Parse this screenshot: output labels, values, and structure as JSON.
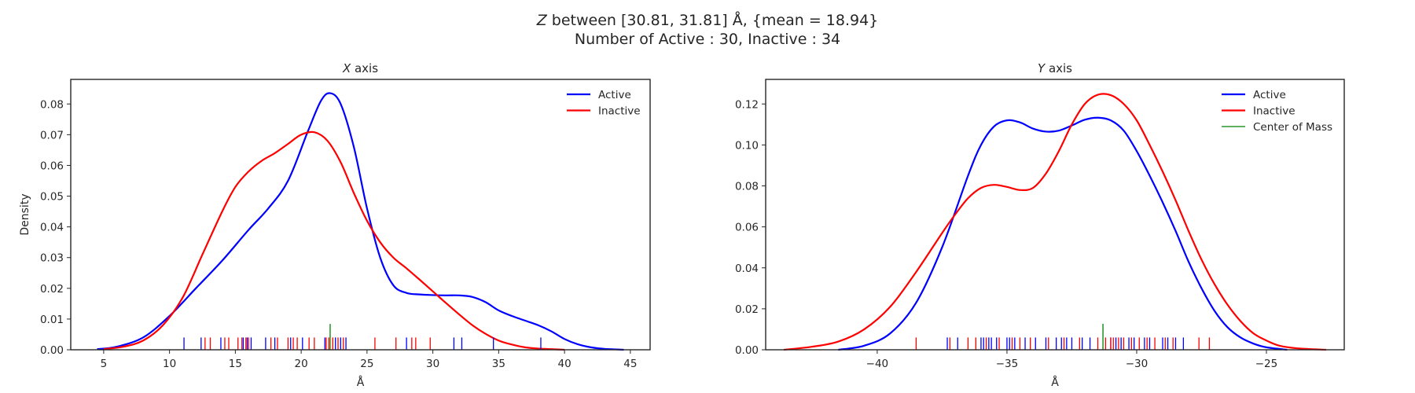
{
  "figure": {
    "title_line1_var": "Z",
    "title_line1_rest": " between [30.81, 31.81] Å, {mean = 18.94}",
    "title_line2": "Number of Active : 30, Inactive : 34"
  },
  "colors": {
    "active": "#0000ff",
    "inactive": "#ff0000",
    "com": "#008000"
  },
  "chart_data": [
    {
      "type": "line",
      "subtitle_var": "X",
      "subtitle_rest": " axis",
      "xlabel": "Å",
      "ylabel": "Density",
      "xlim": [
        2.5,
        46.5
      ],
      "ylim": [
        0,
        0.088
      ],
      "xticks": [
        5,
        10,
        15,
        20,
        25,
        30,
        35,
        40,
        45
      ],
      "xtick_labels": [
        "5",
        "10",
        "15",
        "20",
        "25",
        "30",
        "35",
        "40",
        "45"
      ],
      "yticks": [
        0,
        0.01,
        0.02,
        0.03,
        0.04,
        0.05,
        0.06,
        0.07,
        0.08
      ],
      "ytick_labels": [
        "0.00",
        "0.01",
        "0.02",
        "0.03",
        "0.04",
        "0.05",
        "0.06",
        "0.07",
        "0.08"
      ],
      "grid": false,
      "legend_position": "top-right",
      "rug_height": 0.004,
      "series": [
        {
          "name": "Active",
          "color_key": "active",
          "x": [
            4.5,
            6,
            8,
            10,
            12,
            14,
            16,
            17.5,
            19,
            20.5,
            21.5,
            22.2,
            23,
            24,
            25,
            26,
            27,
            28,
            29,
            30,
            31,
            32,
            33,
            34,
            35,
            36,
            37,
            38,
            39,
            40,
            41,
            42,
            43,
            44.5
          ],
          "y": [
            0.0002,
            0.001,
            0.004,
            0.011,
            0.02,
            0.029,
            0.039,
            0.046,
            0.055,
            0.071,
            0.081,
            0.0835,
            0.08,
            0.066,
            0.046,
            0.03,
            0.021,
            0.0185,
            0.018,
            0.0178,
            0.0177,
            0.0177,
            0.0172,
            0.0155,
            0.0128,
            0.011,
            0.0095,
            0.008,
            0.006,
            0.0035,
            0.0018,
            0.0008,
            0.0003,
            0.0
          ],
          "rug": [
            11.1,
            12.4,
            13.9,
            15.6,
            15.9,
            16.2,
            17.3,
            18.0,
            19.2,
            20.1,
            21.8,
            22.6,
            23.0,
            23.4,
            28.0,
            31.6,
            32.2,
            34.6,
            38.2
          ]
        },
        {
          "name": "Inactive",
          "color_key": "inactive",
          "x": [
            5,
            6.5,
            8,
            9.5,
            11,
            12.5,
            14,
            15,
            16,
            17,
            18,
            19,
            20,
            21,
            22,
            23,
            24,
            25,
            26,
            27,
            28,
            29,
            30,
            31,
            32,
            33,
            34,
            35,
            36,
            37,
            38,
            39,
            40
          ],
          "y": [
            0.0002,
            0.001,
            0.003,
            0.008,
            0.017,
            0.031,
            0.045,
            0.053,
            0.058,
            0.0615,
            0.064,
            0.067,
            0.07,
            0.0708,
            0.068,
            0.061,
            0.051,
            0.042,
            0.035,
            0.03,
            0.0265,
            0.0228,
            0.019,
            0.0152,
            0.0115,
            0.008,
            0.0052,
            0.003,
            0.0017,
            0.0008,
            0.0004,
            0.0002,
            0.0
          ],
          "rug": [
            12.7,
            13.1,
            14.2,
            14.5,
            15.2,
            15.5,
            15.8,
            16.0,
            17.7,
            18.2,
            19.0,
            19.4,
            19.7,
            20.6,
            21.0,
            21.9,
            22.1,
            22.4,
            22.8,
            23.2,
            25.6,
            27.2,
            28.4,
            28.7,
            29.8
          ]
        }
      ],
      "center_of_mass": {
        "x": 22.2,
        "height": 0.0084
      }
    },
    {
      "type": "line",
      "subtitle_var": "Y",
      "subtitle_rest": " axis",
      "xlabel": "Å",
      "ylabel": "",
      "xlim": [
        -44.3,
        -22
      ],
      "ylim": [
        0,
        0.132
      ],
      "xticks": [
        -40,
        -35,
        -30,
        -25
      ],
      "xtick_labels": [
        "−40",
        "−35",
        "−30",
        "−25"
      ],
      "yticks": [
        0,
        0.02,
        0.04,
        0.06,
        0.08,
        0.1,
        0.12
      ],
      "ytick_labels": [
        "0.00",
        "0.02",
        "0.04",
        "0.06",
        "0.08",
        "0.10",
        "0.12"
      ],
      "grid": false,
      "legend_position": "top-right",
      "legend_extra": "Center of Mass",
      "rug_height": 0.006,
      "series": [
        {
          "name": "Active",
          "color_key": "active",
          "x": [
            -41.5,
            -40.5,
            -39.5,
            -38.5,
            -37.5,
            -36.5,
            -36,
            -35.5,
            -35,
            -34.5,
            -34,
            -33.5,
            -33,
            -32.5,
            -32,
            -31.5,
            -31,
            -30.5,
            -30,
            -29.5,
            -29,
            -28.5,
            -28,
            -27.5,
            -27,
            -26.5,
            -26,
            -25.5,
            -25,
            -24.2
          ],
          "y": [
            0.0,
            0.002,
            0.008,
            0.023,
            0.05,
            0.085,
            0.1,
            0.109,
            0.112,
            0.111,
            0.108,
            0.1065,
            0.107,
            0.1095,
            0.1123,
            0.1133,
            0.112,
            0.107,
            0.097,
            0.085,
            0.072,
            0.058,
            0.043,
            0.03,
            0.019,
            0.011,
            0.006,
            0.003,
            0.0012,
            0.0
          ]
        },
        {
          "name": "Inactive",
          "color_key": "inactive",
          "x": [
            -43.6,
            -42.5,
            -41.5,
            -40.5,
            -39.5,
            -38.5,
            -37.5,
            -37,
            -36.5,
            -36,
            -35.5,
            -35,
            -34.5,
            -34,
            -33.5,
            -33,
            -32.5,
            -32,
            -31.5,
            -31,
            -30.5,
            -30,
            -29.5,
            -29,
            -28.5,
            -28,
            -27.5,
            -27,
            -26.5,
            -26,
            -25.5,
            -25,
            -24.5,
            -23.8,
            -22.7
          ],
          "y": [
            0.0,
            0.0015,
            0.004,
            0.01,
            0.021,
            0.038,
            0.057,
            0.066,
            0.074,
            0.079,
            0.0805,
            0.0795,
            0.078,
            0.079,
            0.086,
            0.097,
            0.11,
            0.12,
            0.1245,
            0.1243,
            0.12,
            0.112,
            0.1,
            0.087,
            0.073,
            0.058,
            0.044,
            0.032,
            0.022,
            0.014,
            0.008,
            0.0045,
            0.002,
            0.0007,
            0.0
          ],
          "rug": []
        }
      ],
      "rugs": {
        "active": [
          -37.3,
          -36.9,
          -36.0,
          -35.9,
          -35.7,
          -35.6,
          -35.4,
          -35.0,
          -34.9,
          -34.7,
          -34.3,
          -33.9,
          -33.5,
          -33.1,
          -32.9,
          -32.7,
          -32.5,
          -32.1,
          -31.8,
          -31.0,
          -30.8,
          -30.6,
          -30.3,
          -30.1,
          -29.7,
          -29.5,
          -29.0,
          -28.8,
          -28.5,
          -28.2
        ],
        "inactive": [
          -38.5,
          -37.2,
          -36.5,
          -36.2,
          -35.8,
          -35.3,
          -34.8,
          -34.5,
          -34.1,
          -33.4,
          -32.8,
          -32.2,
          -31.5,
          -31.2,
          -31.0,
          -30.9,
          -30.7,
          -30.5,
          -30.2,
          -29.9,
          -29.6,
          -29.3,
          -28.9,
          -28.6,
          -27.6,
          -27.2
        ]
      },
      "center_of_mass": {
        "x": -31.3,
        "height": 0.0127
      }
    }
  ]
}
